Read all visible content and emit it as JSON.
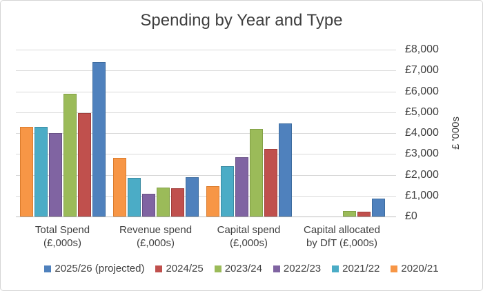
{
  "chart_data": {
    "type": "bar",
    "title": "Spending by Year and Type",
    "ylabel": "£ '000s",
    "ylim": [
      0,
      8000
    ],
    "ytick_step": 1000,
    "yticks": [
      "£0",
      "£1,000",
      "£2,000",
      "£3,000",
      "£4,000",
      "£5,000",
      "£6,000",
      "£7,000",
      "£8,000"
    ],
    "grid": true,
    "legend_position": "bottom",
    "categories": [
      {
        "lines": [
          "Total Spend",
          "(£,000s)"
        ]
      },
      {
        "lines": [
          "Revenue spend",
          "(£,000s)"
        ]
      },
      {
        "lines": [
          "Capital spend",
          "(£,000s)"
        ]
      },
      {
        "lines": [
          "Capital allocated",
          "by DfT (£,000s)"
        ]
      }
    ],
    "series": [
      {
        "name": "2020/21",
        "color": "#F79646",
        "border": "#DB7B2B",
        "values": [
          4300,
          2800,
          1450,
          0
        ]
      },
      {
        "name": "2021/22",
        "color": "#4BACC6",
        "border": "#3A8BA2",
        "values": [
          4300,
          1850,
          2400,
          0
        ]
      },
      {
        "name": "2022/23",
        "color": "#8064A2",
        "border": "#695185",
        "values": [
          4000,
          1100,
          2850,
          0
        ]
      },
      {
        "name": "2023/24",
        "color": "#9BBB59",
        "border": "#82A046",
        "values": [
          5900,
          1400,
          4200,
          250
        ]
      },
      {
        "name": "2024/25",
        "color": "#C0504D",
        "border": "#A03E3B",
        "values": [
          4950,
          1350,
          3250,
          220
        ]
      },
      {
        "name": "2025/26 (projected)",
        "color": "#4F81BD",
        "border": "#3C6B9E",
        "values": [
          7400,
          1900,
          4450,
          850
        ]
      }
    ],
    "legend_order": [
      "2025/26 (projected)",
      "2024/25",
      "2023/24",
      "2022/23",
      "2021/22",
      "2020/21"
    ]
  }
}
